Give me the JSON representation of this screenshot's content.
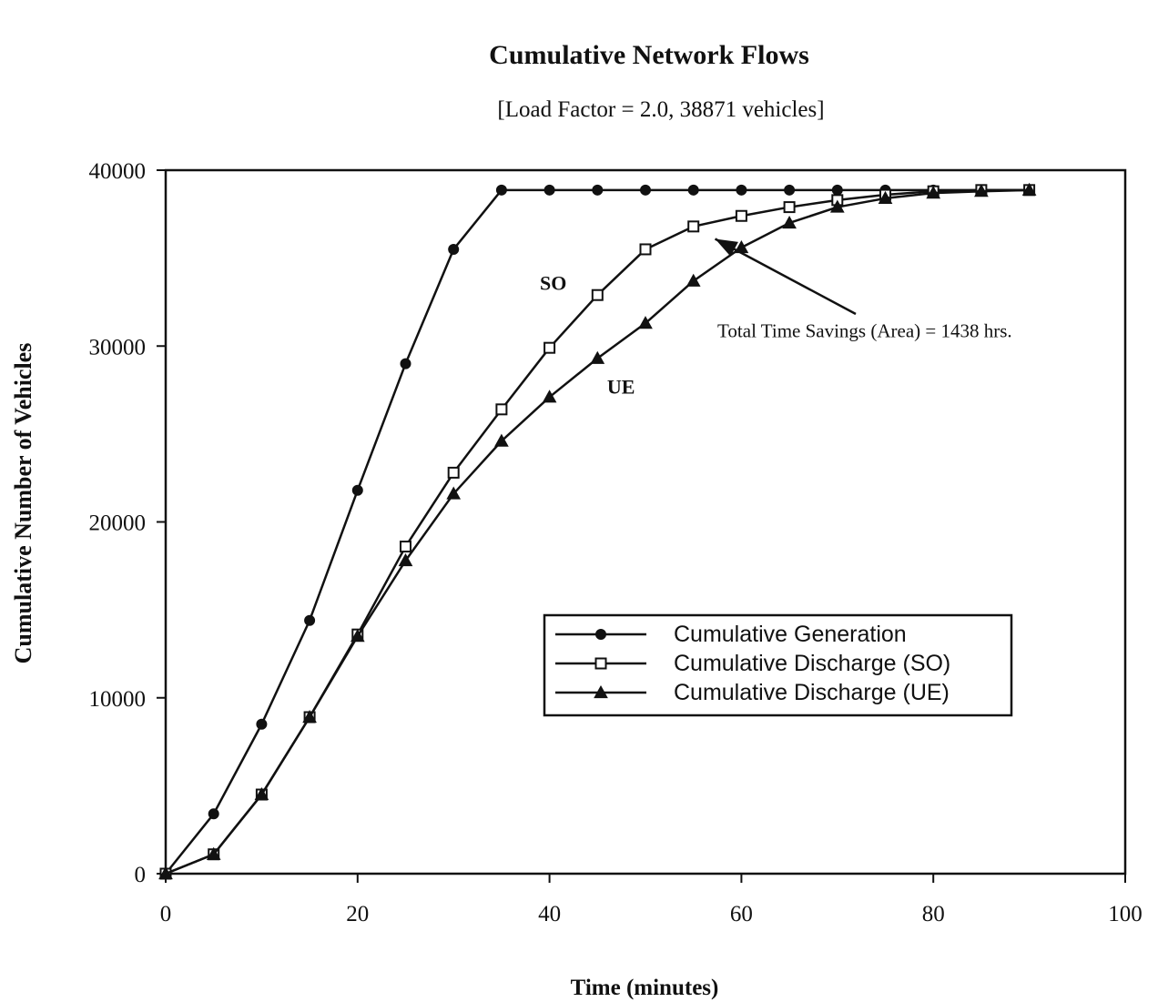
{
  "chart_data": {
    "type": "line",
    "title": "Cumulative Network Flows",
    "subtitle": "[Load Factor = 2.0, 38871 vehicles]",
    "xlabel": "Time (minutes)",
    "ylabel": "Cumulative Number of Vehicles",
    "xlim": [
      0,
      100
    ],
    "ylim": [
      0,
      40000
    ],
    "xticks": [
      0,
      20,
      40,
      60,
      80,
      100
    ],
    "yticks": [
      0,
      10000,
      20000,
      30000,
      40000
    ],
    "grid": false,
    "legend_position": "lower-right",
    "series": [
      {
        "name": "Cumulative Generation",
        "marker": "filled-circle",
        "x": [
          0,
          5,
          10,
          15,
          20,
          25,
          30,
          35,
          40,
          45,
          50,
          55,
          60,
          65,
          70,
          75,
          80,
          85,
          90
        ],
        "y": [
          0,
          3400,
          8500,
          14400,
          21800,
          29000,
          35500,
          38871,
          38871,
          38871,
          38871,
          38871,
          38871,
          38871,
          38871,
          38871,
          38871,
          38871,
          38871
        ]
      },
      {
        "name": "Cumulative Discharge (SO)",
        "marker": "open-square",
        "x": [
          0,
          5,
          10,
          15,
          20,
          25,
          30,
          35,
          40,
          45,
          50,
          55,
          60,
          65,
          70,
          75,
          80,
          85,
          90
        ],
        "y": [
          0,
          1100,
          4500,
          8900,
          13600,
          18600,
          22800,
          26400,
          29900,
          32900,
          35500,
          36800,
          37400,
          37900,
          38300,
          38600,
          38800,
          38871,
          38871
        ]
      },
      {
        "name": "Cumulative Discharge (UE)",
        "marker": "filled-triangle",
        "x": [
          0,
          5,
          10,
          15,
          20,
          25,
          30,
          35,
          40,
          45,
          50,
          55,
          60,
          65,
          70,
          75,
          80,
          85,
          90
        ],
        "y": [
          0,
          1100,
          4500,
          8900,
          13500,
          17800,
          21600,
          24600,
          27100,
          29300,
          31300,
          33700,
          35600,
          37000,
          37900,
          38400,
          38700,
          38800,
          38871
        ]
      }
    ],
    "annotations": [
      {
        "text": "SO",
        "x": 39,
        "y": 33200
      },
      {
        "text": "UE",
        "x": 46,
        "y": 27300
      },
      {
        "text": "Total Time Savings (Area) = 1438 hrs.",
        "x": 57.5,
        "y": 30500,
        "arrow_to": [
          56.5,
          36300
        ]
      }
    ]
  }
}
